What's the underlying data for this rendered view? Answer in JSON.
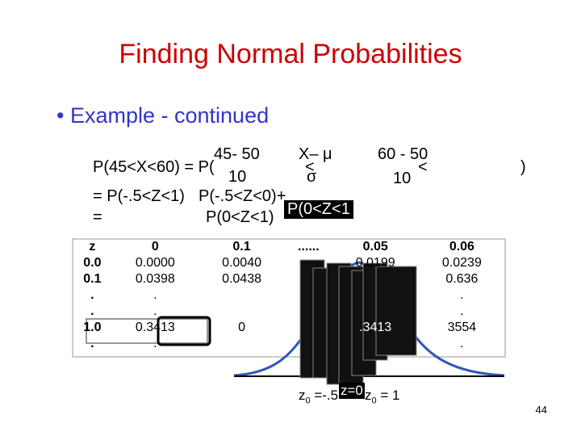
{
  "title": "Finding Normal Probabilities",
  "bullet": "Example - continued",
  "equation": [
    "P(45<X<60) = P(",
    "45- 50",
    "10",
    "X– μ",
    "<",
    "σ",
    "60 - 50",
    "<",
    "10",
    ")",
    "= P(-.5<Z<1)",
    "P(-.5<Z<0)+",
    "P(0<Z<1",
    "=",
    "P(0<Z<1)"
  ],
  "table": {
    "header": [
      "z",
      "0",
      "0.1",
      "......",
      "0.05",
      "0.06"
    ],
    "rows": [
      [
        "0.0",
        "0.0000",
        "0.0040",
        "",
        "0.0199",
        "0.0239"
      ],
      [
        "0.1",
        "0.0398",
        "0.0438",
        "",
        "",
        "0.636"
      ],
      [
        ".",
        ".",
        "",
        "",
        "",
        "."
      ],
      [
        ".",
        ".",
        "",
        "",
        "",
        "."
      ],
      [
        "1.0",
        "0.3413",
        "0",
        "",
        ".3413",
        "3554"
      ],
      [
        ".",
        ".",
        "",
        "",
        "",
        "."
      ]
    ]
  },
  "figure_labels": [
    {
      "symbol": "z",
      "subscript": "0",
      "rest": " =-.5"
    },
    "z=0",
    {
      "symbol": "z",
      "subscript": "0",
      "rest": " = 1"
    }
  ],
  "page_number": "44"
}
